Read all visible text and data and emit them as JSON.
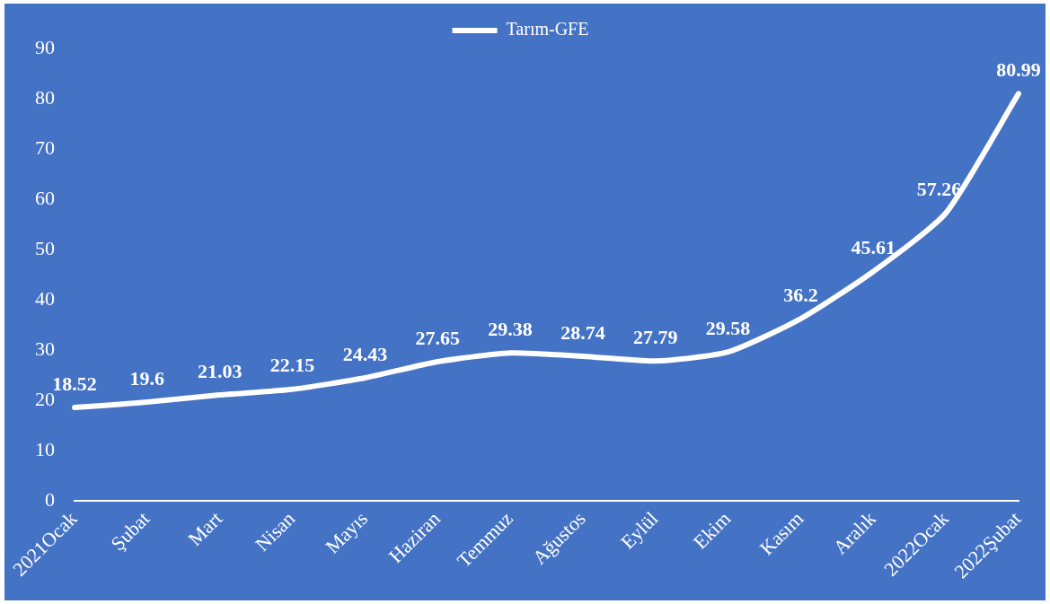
{
  "chart_data": {
    "type": "line",
    "categories": [
      "2021Ocak",
      "Şubat",
      "Mart",
      "Nisan",
      "Mayıs",
      "Haziran",
      "Temmuz",
      "Ağustos",
      "Eylül",
      "Ekim",
      "Kasım",
      "Aralık",
      "2022Ocak",
      "2022Şubat"
    ],
    "series": [
      {
        "name": "Tarım-GFE",
        "color": "#ffffff",
        "values": [
          18.52,
          19.6,
          21.03,
          22.15,
          24.43,
          27.65,
          29.38,
          28.74,
          27.79,
          29.58,
          36.2,
          45.61,
          57.26,
          80.99
        ]
      }
    ],
    "ylim": [
      0,
      90
    ],
    "yticks": [
      0,
      10,
      20,
      30,
      40,
      50,
      60,
      70,
      80,
      90
    ],
    "grid": false,
    "legend": "top",
    "marker": "none",
    "line_style": "solid",
    "data_labels": true
  }
}
